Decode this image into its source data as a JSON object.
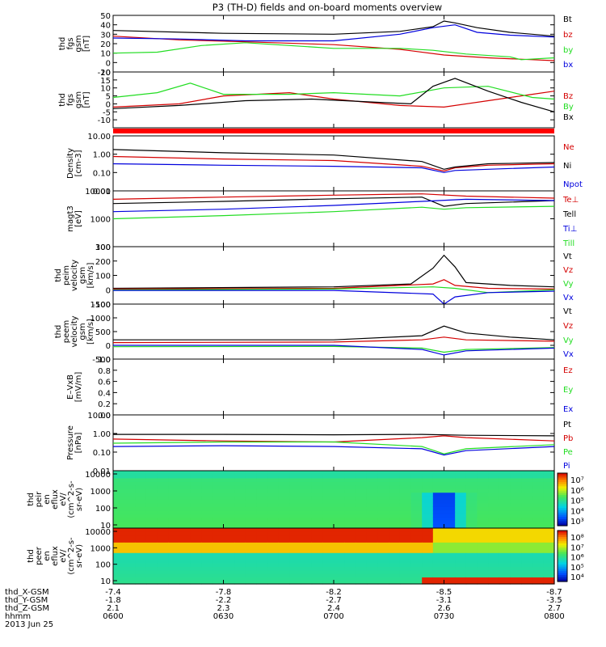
{
  "title": "P3 (TH-D) fields and on-board moments overview",
  "date_label": "2013 Jun 25",
  "colorbar_ticks": [
    [
      "10⁷",
      "10⁶",
      "10⁵",
      "10⁴",
      "10³"
    ],
    [
      "10⁸",
      "10⁷",
      "10⁶",
      "10⁵",
      "10⁴"
    ]
  ],
  "colors": {
    "black": "#000000",
    "red": "#d40000",
    "green": "#22dd22",
    "blue": "#0000dd",
    "quality_bar": "#ff0000"
  },
  "chart_data": {
    "type": "line",
    "x_time_labels": [
      "0600",
      "0630",
      "0700",
      "0730",
      "0800"
    ],
    "x_time_hours": [
      6.0,
      6.5,
      7.0,
      7.5,
      8.0
    ],
    "orbit_labels": [
      {
        "name": "thd_X-GSM",
        "values": [
          "-7.4",
          "-7.8",
          "-8.2",
          "-8.5",
          "-8.7"
        ]
      },
      {
        "name": "thd_Y-GSM",
        "values": [
          "-1.8",
          "-2.2",
          "-2.7",
          "-3.1",
          "-3.5"
        ]
      },
      {
        "name": "thd_Z-GSM",
        "values": [
          "2.1",
          "2.3",
          "2.4",
          "2.6",
          "2.7"
        ]
      },
      {
        "name": "hhmm",
        "values": [
          "0600",
          "0630",
          "0700",
          "0730",
          "0800"
        ]
      }
    ],
    "panels": [
      {
        "id": "fgs-gsm",
        "ylabel": [
          "thd",
          "fgs",
          "gsm",
          "[nT]"
        ],
        "ylim": [
          -10,
          50
        ],
        "yscale": "linear",
        "yticks": [
          -10,
          0,
          10,
          20,
          30,
          40,
          50
        ],
        "series": [
          {
            "name": "Bt",
            "color": "black",
            "x": [
              6.0,
              6.5,
              7.0,
              7.3,
              7.45,
              7.5,
              7.55,
              7.65,
              7.8,
              8.0
            ],
            "y": [
              34,
              31,
              30,
              33,
              38,
              44,
              42,
              37,
              32,
              28
            ]
          },
          {
            "name": "bz",
            "color": "red",
            "x": [
              6.0,
              6.3,
              6.6,
              7.0,
              7.3,
              7.5,
              7.7,
              7.9,
              8.0
            ],
            "y": [
              28,
              24,
              22,
              19,
              14,
              8,
              5,
              3,
              2
            ]
          },
          {
            "name": "by",
            "color": "green",
            "x": [
              6.0,
              6.2,
              6.4,
              6.6,
              6.8,
              7.0,
              7.3,
              7.45,
              7.6,
              7.8,
              7.85,
              8.0
            ],
            "y": [
              10,
              11,
              18,
              21,
              18,
              15,
              15,
              13,
              9,
              6,
              3,
              5
            ]
          },
          {
            "name": "bx",
            "color": "blue",
            "x": [
              6.0,
              6.3,
              6.6,
              7.0,
              7.3,
              7.45,
              7.55,
              7.65,
              7.8,
              8.0
            ],
            "y": [
              26,
              25,
              23,
              23,
              30,
              37,
              40,
              32,
              29,
              27
            ]
          }
        ]
      },
      {
        "id": "fgs-gsm-detrended",
        "ylabel": [
          "thd",
          "fgs",
          "gsm",
          "[nT]"
        ],
        "ylim": [
          -15,
          20
        ],
        "yscale": "linear",
        "yticks": [
          -10,
          -5,
          0,
          5,
          10,
          15,
          20
        ],
        "series": [
          {
            "name": "Bz",
            "color": "red",
            "x": [
              6.0,
              6.3,
              6.5,
              6.8,
              7.0,
              7.3,
              7.5,
              7.7,
              7.9,
              8.0
            ],
            "y": [
              -2,
              0,
              5,
              7,
              3,
              -1,
              -2,
              2,
              6,
              8
            ]
          },
          {
            "name": "By",
            "color": "green",
            "x": [
              6.0,
              6.2,
              6.35,
              6.5,
              6.8,
              7.0,
              7.3,
              7.5,
              7.7,
              7.9,
              8.0
            ],
            "y": [
              4,
              7,
              13,
              6,
              6,
              7,
              5,
              10,
              11,
              4,
              3
            ]
          },
          {
            "name": "Bx",
            "color": "black",
            "x": [
              6.0,
              6.3,
              6.6,
              6.9,
              7.2,
              7.35,
              7.45,
              7.55,
              7.7,
              7.85,
              8.0
            ],
            "y": [
              -3,
              -1,
              2,
              3,
              1,
              0,
              11,
              16,
              8,
              1,
              -5
            ]
          }
        ]
      },
      {
        "id": "density",
        "ylabel": [
          "Density",
          "[cm-3]"
        ],
        "ylim": [
          0.01,
          10
        ],
        "yscale": "log",
        "yticks": [
          0.01,
          0.1,
          1,
          10
        ],
        "yticklabels": [
          "0.01",
          "0.10",
          "1.00",
          "10.00"
        ],
        "series": [
          {
            "name": "Ne",
            "color": "red",
            "x": [
              6.0,
              6.5,
              7.0,
              7.4,
              7.5,
              7.55,
              7.7,
              8.0
            ],
            "y": [
              0.75,
              0.55,
              0.45,
              0.22,
              0.12,
              0.18,
              0.25,
              0.3
            ]
          },
          {
            "name": "Ni",
            "color": "black",
            "x": [
              6.0,
              6.5,
              7.0,
              7.4,
              7.5,
              7.55,
              7.7,
              8.0
            ],
            "y": [
              1.8,
              1.2,
              0.9,
              0.4,
              0.15,
              0.2,
              0.3,
              0.35
            ]
          },
          {
            "name": "Npot",
            "color": "blue",
            "x": [
              6.0,
              6.5,
              7.0,
              7.4,
              7.5,
              7.55,
              7.7,
              8.0
            ],
            "y": [
              0.3,
              0.25,
              0.22,
              0.18,
              0.1,
              0.13,
              0.15,
              0.2
            ]
          }
        ]
      },
      {
        "id": "temperature",
        "ylabel": [
          "magt3",
          "[eV]"
        ],
        "ylim": [
          100,
          10000
        ],
        "yscale": "log",
        "yticks": [
          100,
          1000,
          10000
        ],
        "yticklabels": [
          "100",
          "1000",
          "10000"
        ],
        "series": [
          {
            "name": "Te⊥",
            "color": "red",
            "x": [
              6.0,
              6.5,
              7.0,
              7.4,
              7.6,
              8.0
            ],
            "y": [
              5000,
              6000,
              7000,
              7800,
              6500,
              5500
            ]
          },
          {
            "name": "Tell",
            "color": "black",
            "x": [
              6.0,
              6.5,
              7.0,
              7.4,
              7.5,
              7.6,
              8.0
            ],
            "y": [
              3500,
              4200,
              5200,
              6000,
              2800,
              3500,
              4500
            ]
          },
          {
            "name": "Ti⊥",
            "color": "blue",
            "x": [
              6.0,
              6.5,
              7.0,
              7.4,
              7.6,
              8.0
            ],
            "y": [
              1800,
              2200,
              3000,
              4200,
              5000,
              4500
            ]
          },
          {
            "name": "Till",
            "color": "green",
            "x": [
              6.0,
              6.5,
              7.0,
              7.4,
              7.5,
              7.6,
              8.0
            ],
            "y": [
              1000,
              1300,
              1800,
              2600,
              2200,
              2500,
              2800
            ]
          }
        ]
      },
      {
        "id": "peim-velocity",
        "ylabel": [
          "thd",
          "peim",
          "velocity",
          "gsm",
          "[km/s]"
        ],
        "ylim": [
          -100,
          300
        ],
        "yscale": "linear",
        "yticks": [
          -100,
          0,
          100,
          200,
          300
        ],
        "series": [
          {
            "name": "Vt",
            "color": "black",
            "x": [
              6.0,
              7.0,
              7.35,
              7.45,
              7.5,
              7.55,
              7.6,
              7.8,
              8.0
            ],
            "y": [
              10,
              20,
              40,
              150,
              240,
              160,
              50,
              30,
              20
            ]
          },
          {
            "name": "Vz",
            "color": "red",
            "x": [
              6.0,
              7.0,
              7.45,
              7.5,
              7.55,
              7.7,
              8.0
            ],
            "y": [
              5,
              10,
              40,
              70,
              30,
              10,
              5
            ]
          },
          {
            "name": "Vy",
            "color": "green",
            "x": [
              6.0,
              7.0,
              7.45,
              7.55,
              7.7,
              8.0
            ],
            "y": [
              0,
              5,
              20,
              10,
              -20,
              0
            ]
          },
          {
            "name": "Vx",
            "color": "blue",
            "x": [
              6.0,
              7.0,
              7.45,
              7.5,
              7.55,
              7.7,
              8.0
            ],
            "y": [
              -5,
              -5,
              -30,
              -100,
              -50,
              -20,
              -10
            ]
          }
        ]
      },
      {
        "id": "peem-velocity",
        "ylabel": [
          "thd",
          "peem",
          "velocity",
          "gsm",
          "[km/s]"
        ],
        "ylim": [
          -500,
          1500
        ],
        "yscale": "linear",
        "yticks": [
          -500,
          0,
          500,
          1000,
          1500
        ],
        "series": [
          {
            "name": "Vt",
            "color": "black",
            "x": [
              6.0,
              7.0,
              7.4,
              7.5,
              7.6,
              7.8,
              8.0
            ],
            "y": [
              200,
              200,
              350,
              700,
              450,
              300,
              200
            ]
          },
          {
            "name": "Vz",
            "color": "red",
            "x": [
              6.0,
              7.0,
              7.4,
              7.5,
              7.6,
              8.0
            ],
            "y": [
              100,
              120,
              200,
              300,
              200,
              150
            ]
          },
          {
            "name": "Vy",
            "color": "green",
            "x": [
              6.0,
              7.0,
              7.4,
              7.5,
              7.6,
              8.0
            ],
            "y": [
              -50,
              -40,
              -100,
              -250,
              -150,
              -80
            ]
          },
          {
            "name": "Vx",
            "color": "blue",
            "x": [
              6.0,
              7.0,
              7.4,
              7.5,
              7.6,
              8.0
            ],
            "y": [
              0,
              0,
              -150,
              -350,
              -200,
              -100
            ]
          }
        ]
      },
      {
        "id": "e-vxb",
        "ylabel": [
          "E–VxB",
          "[mV/m]"
        ],
        "ylim": [
          0,
          1
        ],
        "yscale": "linear",
        "yticks": [
          0,
          0.2,
          0.4,
          0.6,
          0.8,
          1.0
        ],
        "yticklabels": [
          "0.0",
          "0.2",
          "0.4",
          "0.6",
          "0.8",
          "1.0"
        ],
        "series": [
          {
            "name": "Ez",
            "color": "red",
            "x": [],
            "y": []
          },
          {
            "name": "Ey",
            "color": "green",
            "x": [],
            "y": []
          },
          {
            "name": "Ex",
            "color": "blue",
            "x": [],
            "y": []
          }
        ]
      },
      {
        "id": "pressure",
        "ylabel": [
          "Pressure",
          "[nPa]"
        ],
        "ylim": [
          0.01,
          10
        ],
        "yscale": "log",
        "yticks": [
          0.01,
          0.1,
          1,
          10
        ],
        "yticklabels": [
          "0.01",
          "0.10",
          "1.00",
          "10.00"
        ],
        "series": [
          {
            "name": "Pt",
            "color": "black",
            "x": [
              6.0,
              6.5,
              7.0,
              7.4,
              7.6,
              8.0
            ],
            "y": [
              0.9,
              0.9,
              0.85,
              0.9,
              0.8,
              0.75
            ]
          },
          {
            "name": "Pb",
            "color": "red",
            "x": [
              6.0,
              6.5,
              7.0,
              7.4,
              7.5,
              7.6,
              8.0
            ],
            "y": [
              0.5,
              0.4,
              0.35,
              0.6,
              0.75,
              0.6,
              0.4
            ]
          },
          {
            "name": "Pe",
            "color": "green",
            "x": [
              6.0,
              6.5,
              7.0,
              7.4,
              7.5,
              7.6,
              8.0
            ],
            "y": [
              0.3,
              0.35,
              0.35,
              0.2,
              0.08,
              0.15,
              0.25
            ]
          },
          {
            "name": "Pi",
            "color": "blue",
            "x": [
              6.0,
              6.5,
              7.0,
              7.4,
              7.5,
              7.6,
              8.0
            ],
            "y": [
              0.2,
              0.22,
              0.2,
              0.15,
              0.07,
              0.12,
              0.2
            ]
          }
        ]
      }
    ],
    "spectrograms": [
      {
        "id": "peir-en-eflux",
        "type": "heatmap",
        "ylabel": [
          "thd",
          "peir",
          "en",
          "eflux",
          "eV/",
          "(cm^2-s-",
          "sr-eV)"
        ],
        "ylim": [
          10,
          10000
        ],
        "yscale": "log",
        "yticks": [
          10,
          100,
          1000,
          10000
        ],
        "yticklabels": [
          "10",
          "100",
          "1000",
          "10000"
        ],
        "zlim": [
          1000,
          10000000
        ]
      },
      {
        "id": "peer-en-eflux",
        "type": "heatmap",
        "ylabel": [
          "thd",
          "peer",
          "en",
          "eflux",
          "eV/",
          "(cm^2-s-",
          "sr-eV)"
        ],
        "ylim": [
          10,
          10000
        ],
        "yscale": "log",
        "yticks": [
          10,
          100,
          1000,
          10000
        ],
        "yticklabels": [
          "10",
          "100",
          "1000",
          "10000"
        ],
        "zlim": [
          10000,
          100000000
        ]
      }
    ]
  }
}
